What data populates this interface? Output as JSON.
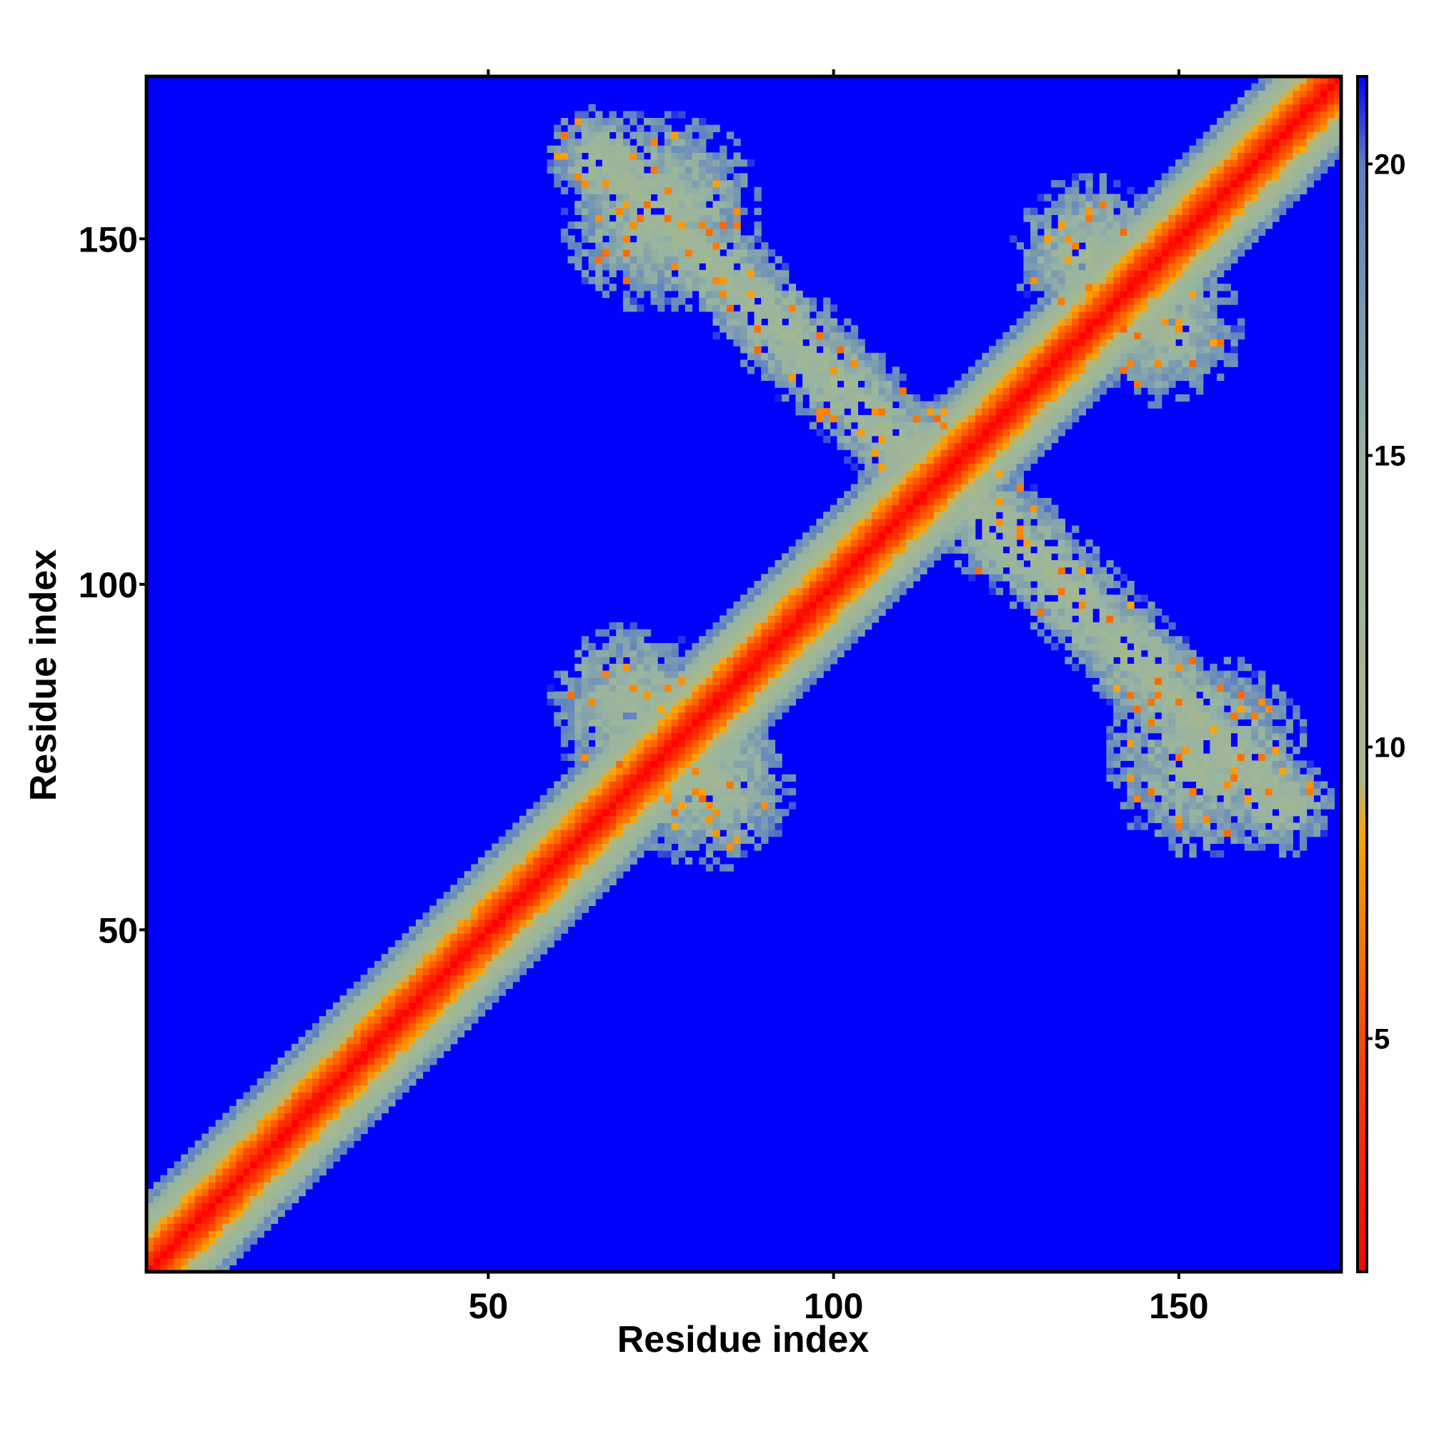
{
  "chart_data": {
    "type": "heatmap",
    "title": "",
    "xlabel": "Residue index",
    "ylabel": "Residue index",
    "x_range": [
      1,
      173
    ],
    "y_range": [
      1,
      173
    ],
    "x_ticks": [
      50,
      100,
      150
    ],
    "y_ticks": [
      50,
      100,
      150
    ],
    "x_tick_labels": [
      "50",
      "100",
      "150"
    ],
    "y_tick_labels": [
      "50",
      "100",
      "150"
    ],
    "colorbar": {
      "range": [
        1,
        21.5
      ],
      "ticks": [
        5,
        10,
        15,
        20
      ],
      "tick_labels": [
        "5",
        "10",
        "15",
        "20"
      ],
      "placement": "right",
      "stops": [
        {
          "value": 1,
          "color": "#ff0000"
        },
        {
          "value": 5,
          "color": "#ff4800"
        },
        {
          "value": 8.5,
          "color": "#ffa500"
        },
        {
          "value": 9.5,
          "color": "#a8b98b"
        },
        {
          "value": 15,
          "color": "#97b3a2"
        },
        {
          "value": 20,
          "color": "#5a7fc4"
        },
        {
          "value": 21.5,
          "color": "#0000ff"
        }
      ]
    },
    "background_value": 21.5,
    "background_color": "#0000ff",
    "structures": {
      "diagonal": {
        "from": 1,
        "to": 173
      },
      "contact_regions": [
        {
          "name": "antiparallel",
          "center": [
            95,
            137
          ],
          "from": [
            66,
            162
          ],
          "to": [
            125,
            106
          ],
          "width": 6
        },
        {
          "name": "antiparallel",
          "center": [
            142,
            95
          ],
          "from": [
            113,
            120
          ],
          "to": [
            165,
            68
          ],
          "width": 6
        },
        {
          "name": "blob",
          "center": [
            71,
            82
          ],
          "radius": 10
        },
        {
          "name": "blob",
          "center": [
            82,
            71
          ],
          "radius": 10
        },
        {
          "name": "blob",
          "center": [
            75,
            154
          ],
          "radius": 12
        },
        {
          "name": "blob",
          "center": [
            154,
            75
          ],
          "radius": 12
        },
        {
          "name": "blob",
          "center": [
            137,
            148
          ],
          "radius": 9
        },
        {
          "name": "blob",
          "center": [
            148,
            137
          ],
          "radius": 9
        }
      ]
    }
  }
}
